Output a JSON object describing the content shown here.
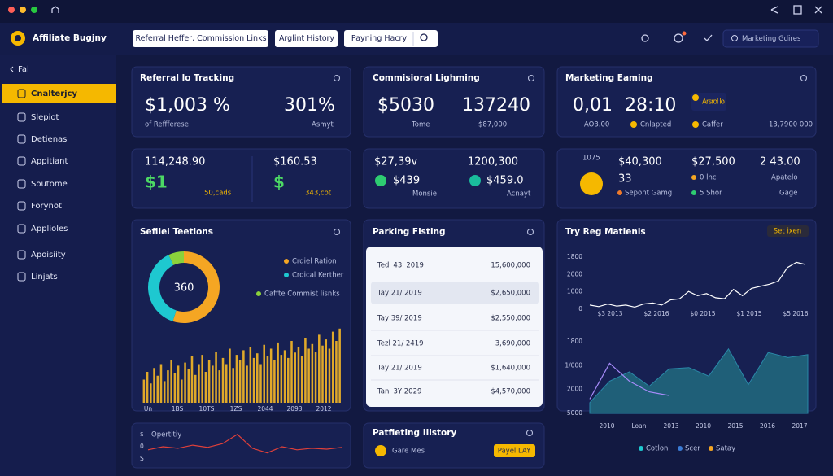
{
  "header": {
    "app": "Affiliate Bugjny",
    "tabs": [
      "Referral Heffer, Commission Links",
      "Arglint History",
      "Payning Hacry"
    ],
    "search": "Marketing Gdires"
  },
  "sidebar": {
    "back": "Fal",
    "items": [
      "Cnalterjcy",
      "Slepiot",
      "Detienas",
      "Appitiant",
      "Soutome",
      "Forynot",
      "Applioles",
      "Apoisiity",
      "Linjats"
    ]
  },
  "referral": {
    "title": "Referral lo Tracking",
    "value1": "$1,003 %",
    "value2": "301%",
    "label1": "of Reffferese!",
    "label2": "Asmyt"
  },
  "commission": {
    "title": "Commisioral Lighming",
    "value1": "$5030",
    "value2": "137240",
    "label1": "Tome",
    "label2": "$87,000"
  },
  "marketing": {
    "title": "Marketing Eaming",
    "value1": "0,01",
    "value2": "28:10",
    "badge": "Arsrol lo",
    "label1": "AO3.00",
    "label2": "Cnlapted",
    "label3": "Caffer",
    "label4": "13,7900 000"
  },
  "stats1": {
    "value1": "114,248.90",
    "value2": "$160.53",
    "big1": "$1",
    "note1": "50,cads",
    "big2": "$",
    "note2": "343,cot"
  },
  "stats2": {
    "value1": "$27,39v",
    "value2": "1200,300",
    "amount1": "$439",
    "label1": "Monsie",
    "amount2": "$459.0",
    "label2": "Acnayt"
  },
  "stats3": {
    "label0": "1075",
    "coin_value": "33",
    "value1": "$40,300",
    "value2": "$27,500",
    "value3": "2 43.00",
    "sub1": "Sepont Gamg",
    "sub2": "0 lnc",
    "sub2b": "5 Shor",
    "sub3": "Apatelo",
    "sub3b": "Gage"
  },
  "selected": {
    "title": "Sefilel Teetions",
    "donut": {
      "type": "pie",
      "center_label": "360",
      "categories": [
        "Crdiel Ration",
        "Crdical Kerther",
        "Caffte Commist lisnks"
      ],
      "values": [
        55,
        38,
        7
      ],
      "colors": [
        "#f5a623",
        "#1ec8d0",
        "#8bd23b"
      ]
    },
    "bars": {
      "type": "bar",
      "color": "#e0a92a",
      "ylim": [
        0,
        100
      ],
      "x_labels": [
        "Un",
        "1BS",
        "10TS",
        "1ZS",
        "2044",
        "2093",
        "2012"
      ],
      "values": [
        30,
        40,
        25,
        45,
        35,
        50,
        28,
        42,
        55,
        38,
        48,
        30,
        52,
        44,
        60,
        36,
        50,
        62,
        40,
        55,
        48,
        66,
        42,
        58,
        50,
        70,
        45,
        62,
        55,
        68,
        48,
        72,
        58,
        64,
        50,
        75,
        60,
        70,
        55,
        78,
        62,
        68,
        58,
        80,
        65,
        72,
        60,
        84,
        70,
        76,
        66,
        88,
        74,
        82,
        70,
        92,
        80,
        96
      ]
    }
  },
  "parking": {
    "title": "Parking Fisting",
    "rows": [
      [
        "Tedl 43l 2019",
        "15,600,000"
      ],
      [
        "Tay 21/ 2019",
        "$2,650,000"
      ],
      [
        "Tay 39/ 2019",
        "$2,550,000"
      ],
      [
        "Tezl 21/ 2419",
        "3,690,000"
      ],
      [
        "Tay 21/ 2019",
        "$1,640,000"
      ],
      [
        "Tanl 3Y 2029",
        "$4,570,000"
      ]
    ]
  },
  "trend": {
    "title": "Try Reg Matienls",
    "badge": "Set ixen",
    "line": {
      "type": "line",
      "color": "#ffffff",
      "ylim": [
        0,
        100
      ],
      "y_labels": [
        "1800",
        "2000",
        "1000",
        "0"
      ],
      "x_labels": [
        "$3 2013",
        "$2 2016",
        "$0 2015",
        "$1 2015",
        "$5 2016"
      ],
      "values": [
        8,
        5,
        10,
        6,
        8,
        4,
        10,
        12,
        8,
        18,
        20,
        34,
        26,
        30,
        22,
        20,
        38,
        26,
        40,
        44,
        48,
        54,
        80,
        90,
        86
      ]
    },
    "area": {
      "type": "area",
      "ylim": [
        0,
        100
      ],
      "y_labels": [
        "1800",
        "1/000",
        "2000",
        "5000"
      ],
      "x_labels": [
        "2010",
        "Loan",
        "2013",
        "2010",
        "2015",
        "2016",
        "2017"
      ],
      "series": [
        {
          "color": "#1f5f78",
          "values": [
            15,
            45,
            58,
            38,
            62,
            64,
            52,
            90,
            40,
            85,
            78,
            82
          ]
        },
        {
          "color": "#a78bfa",
          "values": [
            20,
            70,
            45,
            30,
            25
          ]
        }
      ],
      "legend": [
        {
          "name": "Cotlon",
          "color": "#1ec8d0"
        },
        {
          "name": "Scer",
          "color": "#3a7bd5"
        },
        {
          "name": "Satay",
          "color": "#f5a623"
        }
      ]
    }
  },
  "opportunity": {
    "title": "Opertitiy",
    "y_labels": [
      "$",
      "0",
      "S"
    ],
    "color": "#e0403a",
    "ylim": [
      0,
      100
    ],
    "values": [
      40,
      50,
      45,
      55,
      48,
      60,
      90,
      45,
      30,
      50,
      40,
      45,
      42,
      48
    ]
  },
  "history": {
    "title": "Patfieting Ilistory",
    "item": "Gare Mes",
    "button": "Payel LAY"
  }
}
